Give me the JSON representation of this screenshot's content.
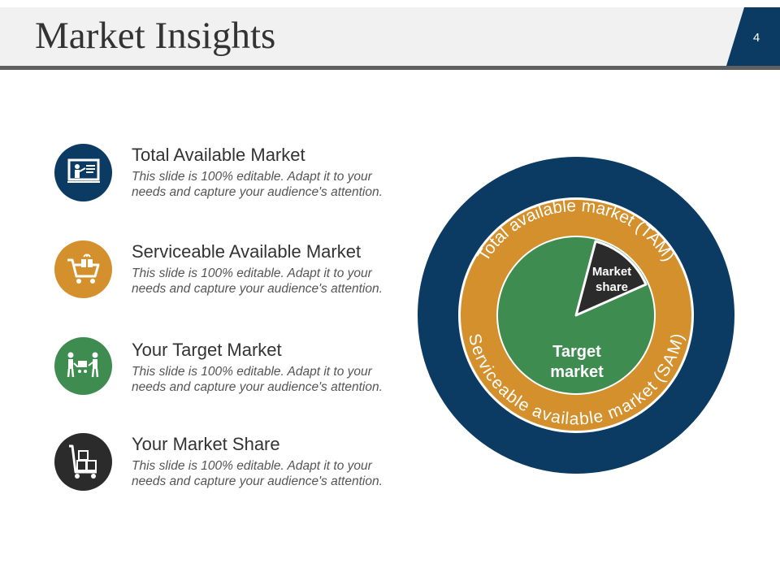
{
  "slide": {
    "title": "Market Insights",
    "page_number": "4"
  },
  "colors": {
    "navy": "#0b3a63",
    "orange": "#d3902c",
    "green": "#3f8c50",
    "dark": "#2b2b2b",
    "header_bg": "#f1f1f1",
    "header_rule": "#5f5f5f"
  },
  "items": [
    {
      "title": "Total Available Market",
      "description": "This slide is 100% editable. Adapt it to your needs and capture your audience's attention.",
      "icon": "presentation-board-icon",
      "color": "#0b3a63"
    },
    {
      "title": "Serviceable Available Market",
      "description": "This slide is 100% editable. Adapt it to your needs and capture your audience's attention.",
      "icon": "shopping-cart-gift-icon",
      "color": "#d3902c"
    },
    {
      "title": "Your Target Market",
      "description": "This slide is 100% editable. Adapt it to your needs and capture your audience's attention.",
      "icon": "people-with-cart-icon",
      "color": "#3f8c50"
    },
    {
      "title": "Your Market Share",
      "description": "This slide is 100% editable. Adapt it to your needs and capture your audience's attention.",
      "icon": "hand-truck-boxes-icon",
      "color": "#2b2b2b"
    }
  ],
  "diagram": {
    "tam_label": "Total available market (TAM)",
    "sam_label": "Serviceable available market (SAM)",
    "target_label_line1": "Target",
    "target_label_line2": "market",
    "share_label_line1": "Market",
    "share_label_line2": "share"
  }
}
